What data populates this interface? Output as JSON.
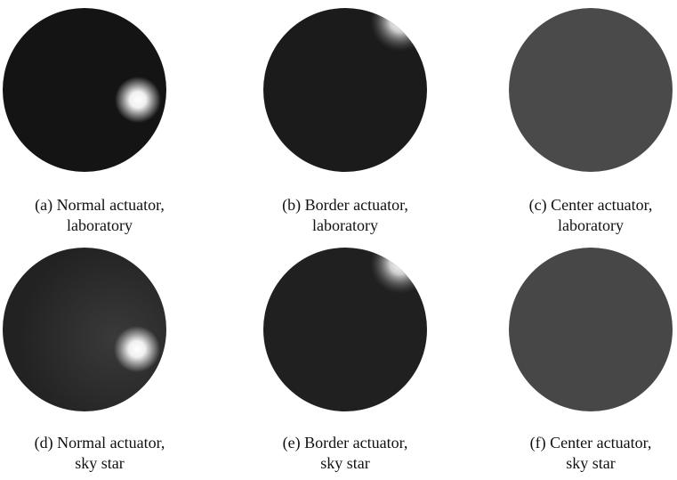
{
  "subfigures": [
    {
      "caption": [
        "(a) Normal actuator,",
        "laboratory"
      ]
    },
    {
      "caption": [
        "(b) Border actuator,",
        "laboratory"
      ]
    },
    {
      "caption": [
        "(c) Center actuator,",
        "laboratory"
      ]
    },
    {
      "caption": [
        "(d) Normal actuator,",
        "sky star"
      ]
    },
    {
      "caption": [
        "(e) Border actuator,",
        "sky star"
      ]
    },
    {
      "caption": [
        "(f) Center actuator,",
        "sky star"
      ]
    }
  ]
}
